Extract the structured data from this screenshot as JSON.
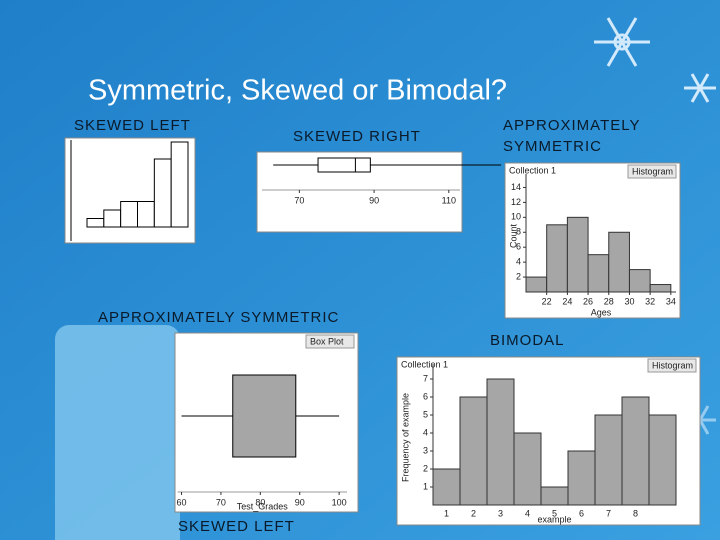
{
  "title": "Symmetric, Skewed or Bimodal?",
  "labels": [
    "SKEWED LEFT",
    "SKEWED RIGHT",
    "APPROXIMATELY",
    "SYMMETRIC",
    "APPROXIMATELY SYMMETRIC",
    "BIMODAL",
    "SKEWED LEFT"
  ],
  "panels": [
    {
      "type": "plain-histogram",
      "values": [
        1,
        2,
        3,
        3,
        8,
        10
      ],
      "color": "#ffffff"
    },
    {
      "type": "boxplot",
      "min": 63,
      "q1": 75,
      "median": 85,
      "q3": 89,
      "max": 124,
      "xlim": [
        60,
        113
      ],
      "xticks": [
        70,
        90,
        110
      ]
    },
    {
      "type": "histogram",
      "header": "Collection 1",
      "menu": "Histogram",
      "xlabel": "Ages",
      "ylabel": "Count",
      "bins": [
        20,
        22,
        24,
        26,
        28,
        30,
        32,
        34
      ],
      "values": [
        2,
        9,
        10,
        5,
        8,
        3,
        1
      ],
      "color": "#a6a6a6",
      "xlim": [
        20,
        34.5
      ],
      "xticks": [
        22,
        24,
        26,
        28,
        30,
        32,
        34
      ],
      "ylim": [
        0,
        15
      ],
      "yticks": [
        2,
        4,
        6,
        8,
        10,
        12,
        14
      ]
    },
    {
      "type": "boxplot",
      "menu": "Box Plot",
      "xlabel": "Test_Grades",
      "min": 60,
      "q1": 73,
      "q3": 89,
      "max": 100,
      "xlim": [
        59,
        102
      ],
      "xticks": [
        60,
        70,
        80,
        90,
        100
      ]
    },
    {
      "type": "bar",
      "header": "Collection 1",
      "menu": "Histogram",
      "xlabel": "example",
      "ylabel": "Frequency of example",
      "categories": [
        1,
        2,
        3,
        4,
        5,
        6,
        7,
        8,
        null
      ],
      "values": [
        2,
        6,
        7,
        4,
        1,
        3,
        5,
        6,
        5
      ],
      "color": "#a6a6a6",
      "ylim": [
        0,
        7.5
      ],
      "yticks": [
        1,
        2,
        3,
        4,
        5,
        6,
        7
      ]
    }
  ]
}
